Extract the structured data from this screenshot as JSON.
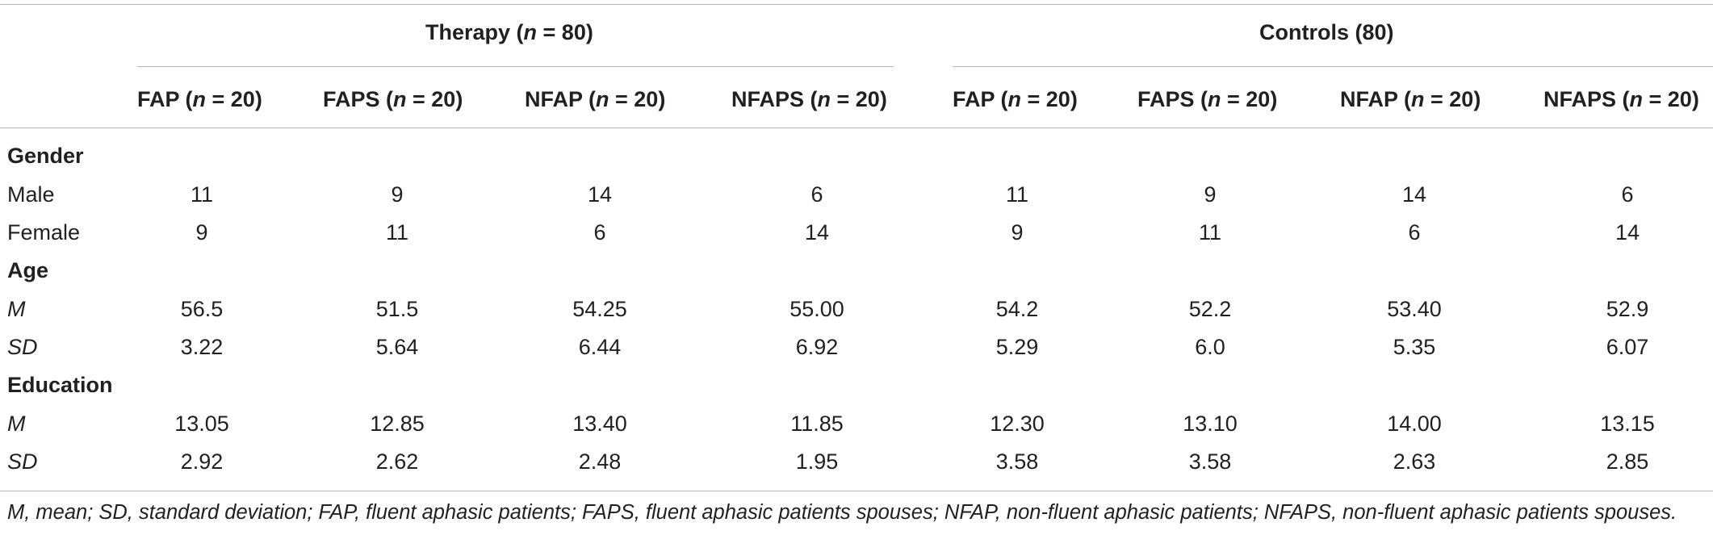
{
  "header": {
    "groups": [
      {
        "pre": "Therapy (",
        "var": "n",
        "post": " = 80)"
      },
      {
        "pre": "Controls (80)",
        "var": "",
        "post": ""
      }
    ],
    "columns": [
      {
        "pre": "FAP (",
        "var": "n",
        "post": " = 20)"
      },
      {
        "pre": "FAPS (",
        "var": "n",
        "post": " = 20)"
      },
      {
        "pre": "NFAP (",
        "var": "n",
        "post": " = 20)"
      },
      {
        "pre": "NFAPS (",
        "var": "n",
        "post": " = 20)"
      },
      {
        "pre": "FAP (",
        "var": "n",
        "post": " = 20)"
      },
      {
        "pre": "FAPS (",
        "var": "n",
        "post": " = 20)"
      },
      {
        "pre": "NFAP (",
        "var": "n",
        "post": " = 20)"
      },
      {
        "pre": "NFAPS (",
        "var": "n",
        "post": " = 20)"
      }
    ]
  },
  "sections": [
    {
      "title": "Gender",
      "rows": [
        {
          "label": "Male",
          "values": [
            "11",
            "9",
            "14",
            "6",
            "11",
            "9",
            "14",
            "6"
          ]
        },
        {
          "label": "Female",
          "values": [
            "9",
            "11",
            "6",
            "14",
            "9",
            "11",
            "6",
            "14"
          ]
        }
      ]
    },
    {
      "title": "Age",
      "rows": [
        {
          "label": "M",
          "values": [
            "56.5",
            "51.5",
            "54.25",
            "55.00",
            "54.2",
            "52.2",
            "53.40",
            "52.9"
          ]
        },
        {
          "label": "SD",
          "values": [
            "3.22",
            "5.64",
            "6.44",
            "6.92",
            "5.29",
            "6.0",
            "5.35",
            "6.07"
          ]
        }
      ]
    },
    {
      "title": "Education",
      "rows": [
        {
          "label": "M",
          "values": [
            "13.05",
            "12.85",
            "13.40",
            "11.85",
            "12.30",
            "13.10",
            "14.00",
            "13.15"
          ]
        },
        {
          "label": "SD",
          "values": [
            "2.92",
            "2.62",
            "2.48",
            "1.95",
            "3.58",
            "3.58",
            "2.63",
            "2.85"
          ]
        }
      ]
    }
  ],
  "footnote": "M, mean; SD, standard deviation; FAP, fluent aphasic patients; FAPS, fluent aphasic patients spouses; NFAP, non-fluent aphasic patients; NFAPS, non-fluent aphasic patients spouses."
}
